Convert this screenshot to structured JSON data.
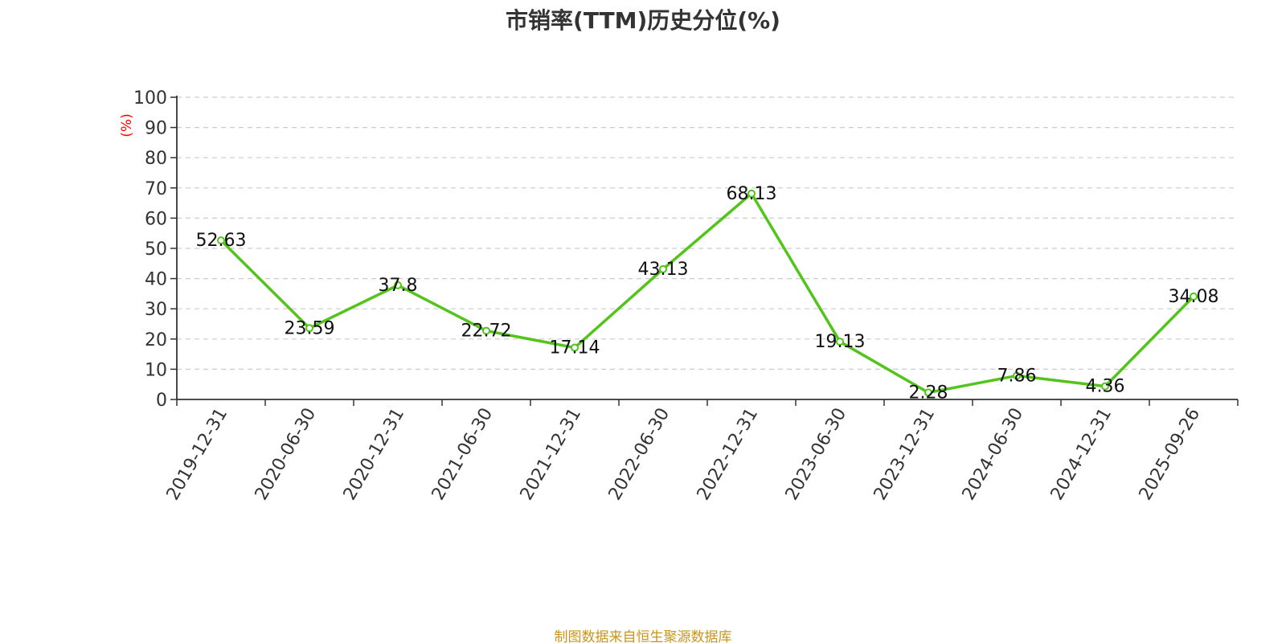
{
  "chart_data": {
    "type": "line",
    "title": "市销率(TTM)历史分位(%)",
    "ylabel": "(%)",
    "xlabel": "",
    "ylim": [
      0,
      100
    ],
    "yticks": [
      0,
      10,
      20,
      30,
      40,
      50,
      60,
      70,
      80,
      90,
      100
    ],
    "grid": true,
    "categories": [
      "2019-12-31",
      "2020-06-30",
      "2020-12-31",
      "2021-06-30",
      "2021-12-31",
      "2022-06-30",
      "2022-12-31",
      "2023-06-30",
      "2023-12-31",
      "2024-06-30",
      "2024-12-31",
      "2025-09-26"
    ],
    "series": [
      {
        "values": [
          52.63,
          23.59,
          37.8,
          22.72,
          17.14,
          43.13,
          68.13,
          19.13,
          2.28,
          7.86,
          4.36,
          34.08
        ],
        "labels": [
          "52.63",
          "23.59",
          "37.8",
          "22.72",
          "17.14",
          "43.13",
          "68.13",
          "19.13",
          "2.28",
          "7.86",
          "4.36",
          "34.08"
        ],
        "color": "#52c41a"
      }
    ]
  },
  "colors": {
    "line": "#52c41a",
    "axis": "#333333",
    "grid": "#cccccc",
    "ylabel": "#ff0000",
    "source": "#c9961a"
  },
  "source_note": "制图数据来自恒生聚源数据库"
}
